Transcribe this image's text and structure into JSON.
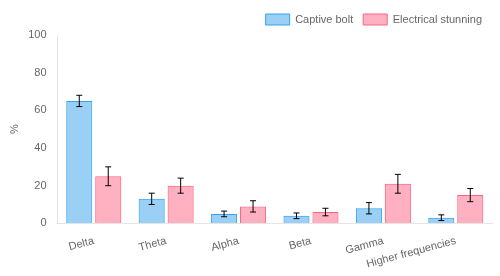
{
  "chart_data": {
    "type": "bar",
    "categories": [
      "Delta",
      "Theta",
      "Alpha",
      "Beta",
      "Gamma",
      "Higher frequencies"
    ],
    "series": [
      {
        "name": "Captive bolt",
        "values": [
          65,
          13,
          5,
          4,
          8,
          3
        ],
        "errors": [
          3,
          3,
          1.5,
          1.5,
          3,
          1.5
        ]
      },
      {
        "name": "Electrical stunning",
        "values": [
          25,
          20,
          9,
          6,
          21,
          15
        ],
        "errors": [
          5,
          4,
          3,
          2,
          5,
          3.5
        ]
      }
    ],
    "ylabel": "%",
    "ylim": [
      0,
      100
    ],
    "yticks": [
      0,
      20,
      40,
      60,
      80,
      100
    ],
    "grid": false,
    "legend": "upper right"
  }
}
